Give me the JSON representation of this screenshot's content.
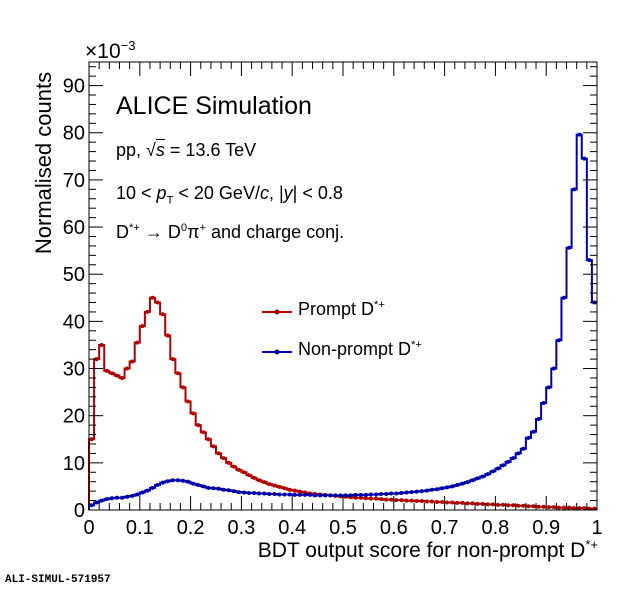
{
  "chart_data": {
    "type": "line",
    "style": "step-histogram with markers",
    "title": "",
    "xlabel": "BDT output score for non-prompt D*+",
    "xlabel_main": "BDT output score for non-prompt D",
    "xlabel_sup": "*+",
    "ylabel": "Normalised counts",
    "y_multiplier": "×10",
    "y_multiplier_exp": "−3",
    "xlim": [
      0,
      1
    ],
    "ylim": [
      0,
      95
    ],
    "x_ticks": [
      "0",
      "0.1",
      "0.2",
      "0.3",
      "0.4",
      "0.5",
      "0.6",
      "0.7",
      "0.8",
      "0.9",
      "1"
    ],
    "y_ticks": [
      "0",
      "10",
      "20",
      "30",
      "40",
      "50",
      "60",
      "70",
      "80",
      "90"
    ],
    "bin_width": 0.01,
    "series": [
      {
        "name": "Prompt D*+",
        "label_main": "Prompt D",
        "label_sup": "*+",
        "color": "#b00000",
        "values": [
          15,
          32,
          35,
          29.5,
          29,
          28.5,
          28,
          30,
          31.5,
          35.5,
          39,
          42,
          45,
          44,
          41.5,
          37,
          32,
          29,
          26,
          23,
          20.5,
          18,
          16.5,
          15,
          13.5,
          12,
          11,
          10,
          9.2,
          8.5,
          8,
          7.4,
          6.8,
          6.3,
          5.9,
          5.5,
          5.2,
          4.9,
          4.6,
          4.3,
          4.1,
          3.9,
          3.7,
          3.5,
          3.4,
          3.3,
          3.2,
          3.1,
          3.0,
          2.9,
          2.8,
          2.7,
          2.6,
          2.6,
          2.5,
          2.4,
          2.4,
          2.3,
          2.2,
          2.2,
          2.1,
          2.1,
          2.0,
          2.0,
          1.9,
          1.9,
          1.8,
          1.8,
          1.7,
          1.7,
          1.6,
          1.6,
          1.5,
          1.5,
          1.4,
          1.4,
          1.3,
          1.3,
          1.2,
          1.2,
          1.1,
          1.1,
          1.0,
          1.0,
          0.9,
          0.9,
          0.8,
          0.8,
          0.7,
          0.7,
          0.6,
          0.6,
          0.5,
          0.5,
          0.5,
          0.4,
          0.4,
          0.4,
          0.3,
          0.3
        ]
      },
      {
        "name": "Non-prompt D*+",
        "label_main": "Non-prompt D",
        "label_sup": "*+",
        "color": "#0000aa",
        "values": [
          1.0,
          1.6,
          2.0,
          2.3,
          2.5,
          2.6,
          2.6,
          2.8,
          3.0,
          3.3,
          3.7,
          4.1,
          4.7,
          5.3,
          5.8,
          6.1,
          6.3,
          6.3,
          6.2,
          6.0,
          5.6,
          5.3,
          5.0,
          4.7,
          4.6,
          4.5,
          4.3,
          4.2,
          4.0,
          3.8,
          3.7,
          3.6,
          3.6,
          3.5,
          3.5,
          3.4,
          3.4,
          3.3,
          3.3,
          3.3,
          3.2,
          3.2,
          3.2,
          3.2,
          3.1,
          3.1,
          3.1,
          3.1,
          3.1,
          3.1,
          3.1,
          3.1,
          3.2,
          3.2,
          3.2,
          3.3,
          3.3,
          3.4,
          3.4,
          3.5,
          3.5,
          3.6,
          3.7,
          3.8,
          3.9,
          4.0,
          4.1,
          4.3,
          4.4,
          4.6,
          4.8,
          5.0,
          5.3,
          5.6,
          5.9,
          6.3,
          6.7,
          7.1,
          7.6,
          8.2,
          8.8,
          9.5,
          10.2,
          11,
          12,
          13,
          15.3,
          16.6,
          19.3,
          22.7,
          26,
          30,
          36,
          45,
          55.6,
          68,
          79.6,
          74.5,
          53,
          44
        ]
      }
    ],
    "legend_position": "center",
    "annotations": {
      "experiment": "ALICE Simulation",
      "system": "pp, ",
      "sqrt": "√",
      "s": "s",
      "energy": " = 13.6 TeV",
      "kin_a": "10 < ",
      "kin_p": "p",
      "kin_T": "T",
      "kin_b": " < 20 GeV/",
      "kin_c": "c",
      "kin_d": ", |",
      "kin_y": "y",
      "kin_e": "| < 0.8",
      "decay_D": "D",
      "decay_sup1": "*+",
      "decay_arrow": " → D",
      "decay_sup0": "0",
      "decay_pi": "π",
      "decay_sup2": "+",
      "decay_rest": " and charge conj."
    }
  },
  "figure_tag": "ALI-SIMUL-571957"
}
